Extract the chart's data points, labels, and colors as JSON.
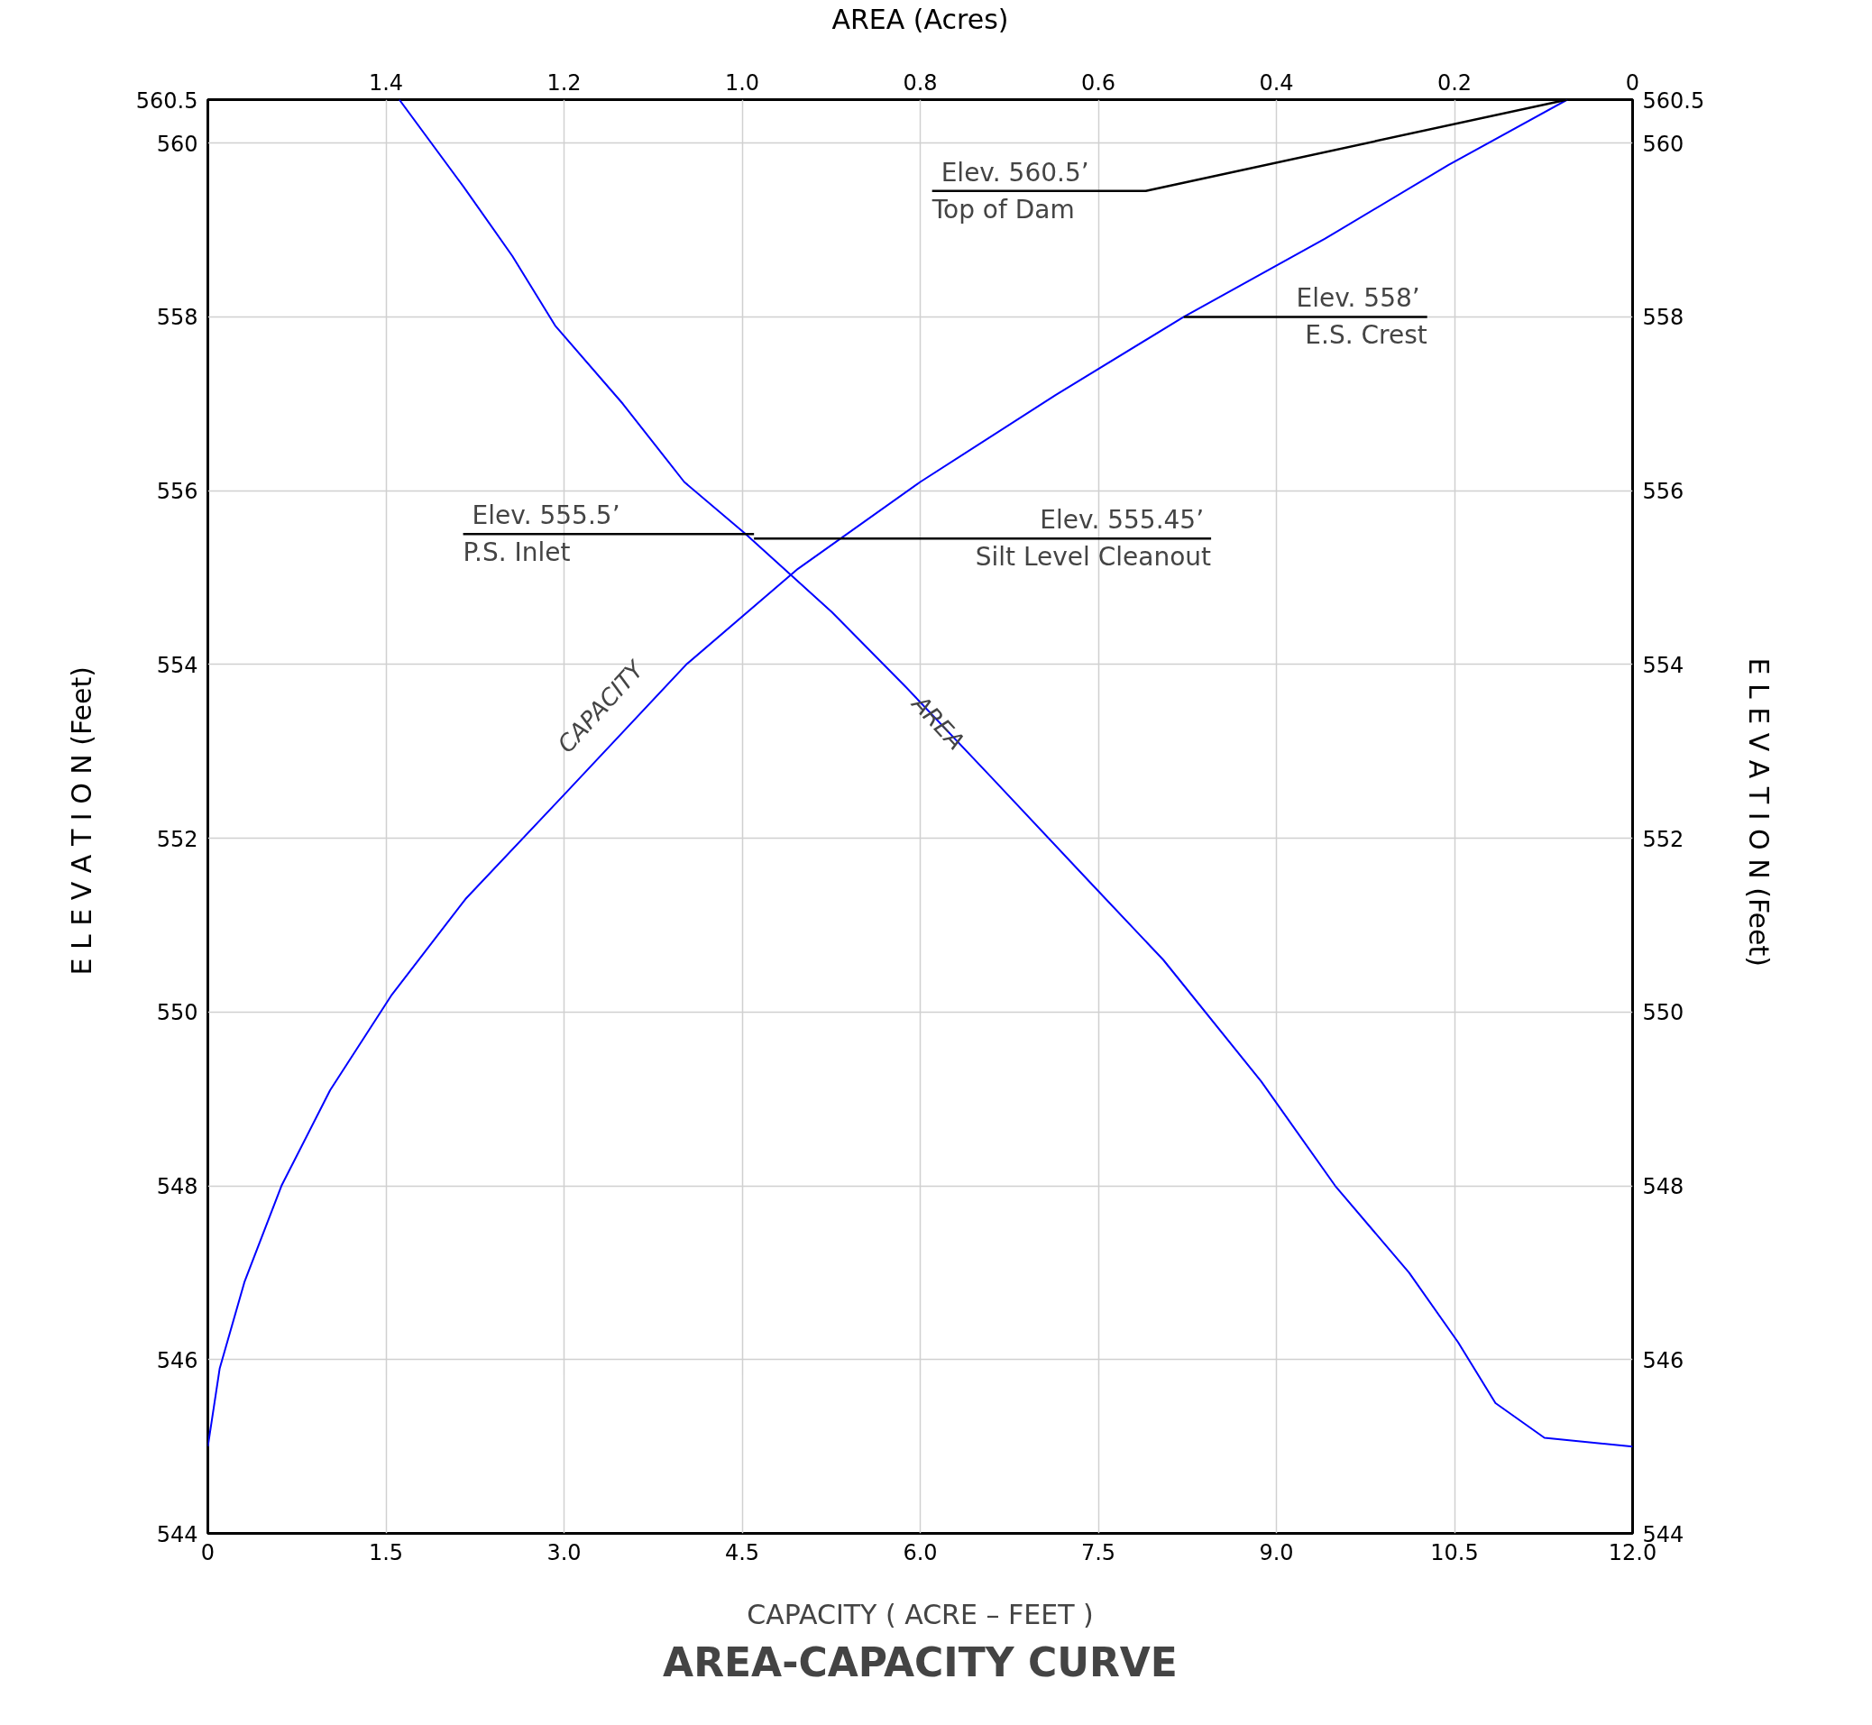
{
  "chart_data": {
    "type": "line",
    "title": "AREA-CAPACITY CURVE",
    "xlabel": "CAPACITY ( ACRE – FEET )",
    "x2label": "AREA (Acres)",
    "ylabel": "E L E V A T I O N  (Feet)",
    "y2label": "E L E V A T I O N  (Feet)",
    "xlim": [
      0,
      12
    ],
    "xticks": [
      0,
      1.5,
      {
        "value": 3,
        "label": "3.0"
      },
      4.5,
      {
        "value": 6,
        "label": "6.0"
      },
      7.5,
      {
        "value": 9,
        "label": "9.0"
      },
      10.5,
      {
        "value": 12,
        "label": "12.0"
      }
    ],
    "x2lim": [
      1.6,
      0
    ],
    "x2ticks": [
      1.4,
      1.2,
      {
        "value": 1,
        "label": "1.0"
      },
      0.8,
      0.6,
      0.4,
      0.2,
      0
    ],
    "ylim": [
      544,
      560.5
    ],
    "yticks": [
      544,
      546,
      548,
      550,
      552,
      554,
      556,
      558,
      560,
      560.5
    ],
    "y2lim": [
      544,
      560.5
    ],
    "y2ticks": [
      544,
      546,
      548,
      550,
      552,
      554,
      556,
      558,
      560,
      560.5
    ],
    "grid": true,
    "marker": "none",
    "line_style": "solid",
    "series": [
      {
        "name": "CAPACITY",
        "color": "#0000ff",
        "x": [
          0,
          0.1,
          0.31,
          0.62,
          1.03,
          1.55,
          2.17,
          3.0,
          4.03,
          4.97,
          6.0,
          7.14,
          8.22,
          9.41,
          10.45,
          11.45
        ],
        "values": [
          545,
          545.9,
          546.9,
          548.0,
          549.1,
          550.2,
          551.3,
          552.5,
          554.0,
          555.1,
          556.1,
          557.1,
          558.0,
          558.9,
          559.75,
          560.5
        ]
      },
      {
        "name": "AREA",
        "color": "#0000ff",
        "axis": "x2",
        "x": [
          1.385,
          1.313,
          1.258,
          1.21,
          1.134,
          1.065,
          0.996,
          0.899,
          0.817,
          0.72,
          0.61,
          0.527,
          0.417,
          0.334,
          0.251,
          0.196,
          0.154,
          0.099,
          0
        ],
        "values": [
          560.5,
          559.5,
          558.7,
          557.9,
          557.0,
          556.1,
          555.5,
          554.6,
          553.75,
          552.7,
          551.5,
          550.6,
          549.2,
          548.0,
          547.0,
          546.2,
          545.5,
          545.1,
          545
        ]
      }
    ],
    "annotations": [
      {
        "text": "Elev. 560.5’\nTop of Dam",
        "x": 11.45,
        "y": 560.5
      },
      {
        "text": "Elev. 558’\nE.S. Crest",
        "x": 8.22,
        "y": 558
      },
      "Elev. 555.5’\nP.S. Inlet",
      {
        "text": "Elev. 555.45’\nSilt Level Cleanout",
        "x": 4.6,
        "y": 555.45
      }
    ]
  }
}
